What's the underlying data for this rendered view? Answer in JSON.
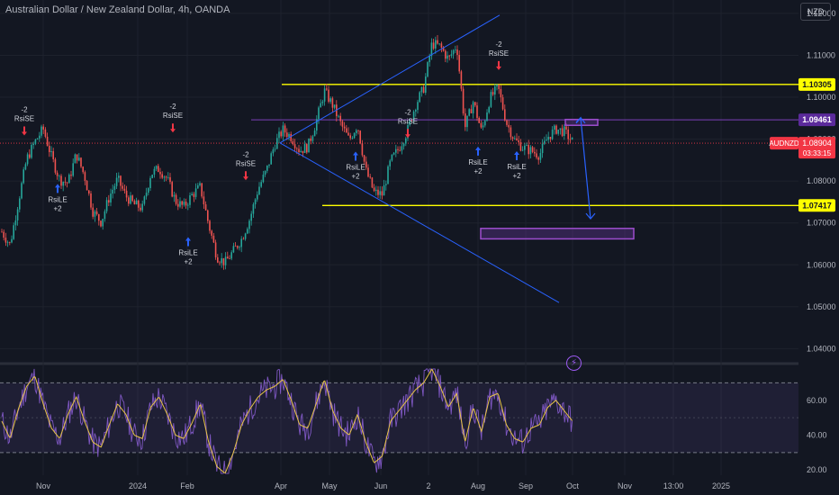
{
  "title": "Australian Dollar / New Zealand Dollar, 4h, OANDA",
  "currency_button": "NZD",
  "bolt_icon": "lightning-icon",
  "chart_data": [
    {
      "type": "line",
      "name": "price",
      "y_ticks": [
        "1.12000",
        "1.11000",
        "1.10000",
        "1.09000",
        "1.08000",
        "1.07000",
        "1.06000",
        "1.05000",
        "1.04000"
      ],
      "ylim": [
        1.0373,
        1.1232
      ],
      "x_ticks": [
        "Nov",
        "2024",
        "Feb",
        "Apr",
        "May",
        "Jun",
        "2",
        "Aug",
        "Sep",
        "Oct",
        "Nov",
        "13:00",
        "2025"
      ],
      "x_tick_index": [
        48,
        153,
        208,
        312,
        366,
        423,
        476,
        531,
        584,
        636,
        694,
        748,
        801
      ],
      "close_series": [
        1.0679,
        1.0648,
        1.0751,
        1.0852,
        1.0893,
        1.0925,
        1.0858,
        1.0803,
        1.0795,
        1.0865,
        1.0812,
        1.0728,
        1.0702,
        1.0763,
        1.0805,
        1.0764,
        1.0744,
        1.0735,
        1.0817,
        1.083,
        1.0805,
        1.0752,
        1.0738,
        1.0767,
        1.0786,
        1.0697,
        1.062,
        1.0605,
        1.0633,
        1.0662,
        1.0711,
        1.0782,
        1.0825,
        1.0888,
        1.0922,
        1.0905,
        1.0873,
        1.0882,
        1.0941,
        1.1015,
        1.0981,
        1.0935,
        1.0898,
        1.0935,
        1.0826,
        1.0773,
        1.0768,
        1.0847,
        1.0878,
        1.0918,
        1.0981,
        1.1022,
        1.1128,
        1.1121,
        1.109,
        1.1125,
        1.0928,
        1.099,
        1.0917,
        1.0997,
        1.1023,
        1.094,
        1.0898,
        1.088,
        1.0872,
        1.0862,
        1.0905,
        1.0924,
        1.0918,
        1.0894
      ],
      "series_x_start": 2,
      "series_x_end": 636,
      "levels": [
        {
          "value": 1.10305,
          "label": "1.10305",
          "color": "#ffff00"
        },
        {
          "value": 1.09461,
          "label": "1.09461",
          "color": "#7b3fb8"
        },
        {
          "value": 1.07417,
          "label": "1.07417",
          "color": "#ffff00"
        }
      ],
      "last_price": {
        "symbol": "AUDNZD",
        "value": "1.08904",
        "countdown": "03:33:15",
        "price": 1.08904,
        "color": "#f23645"
      },
      "signals": [
        {
          "kind": "short",
          "labels": [
            "-2",
            "RsiSE"
          ],
          "i": 27,
          "price": 1.0896
        },
        {
          "kind": "long",
          "labels": [
            "RsiLE",
            "+2"
          ],
          "i": 64,
          "price": 1.0806
        },
        {
          "kind": "short",
          "labels": [
            "-2",
            "RsiSE"
          ],
          "i": 192,
          "price": 1.0903
        },
        {
          "kind": "long",
          "labels": [
            "RsiLE",
            "+2"
          ],
          "i": 209,
          "price": 1.0679
        },
        {
          "kind": "short",
          "labels": [
            "-2",
            "RsiSE"
          ],
          "i": 273,
          "price": 1.0789
        },
        {
          "kind": "long",
          "labels": [
            "RsiLE",
            "+2"
          ],
          "i": 395,
          "price": 1.0883
        },
        {
          "kind": "short",
          "labels": [
            "-2",
            "RsiSE"
          ],
          "i": 453,
          "price": 1.089
        },
        {
          "kind": "long",
          "labels": [
            "RsiLE",
            "+2"
          ],
          "i": 531,
          "price": 1.0895
        },
        {
          "kind": "short",
          "labels": [
            "-2",
            "RsiSE"
          ],
          "i": 554,
          "price": 1.1052
        },
        {
          "kind": "long",
          "labels": [
            "RsiLE",
            "+2"
          ],
          "i": 574,
          "price": 1.0884
        }
      ],
      "trend_lines": [
        {
          "from": [
            311,
            1.0891
          ],
          "to": [
            555,
            1.1196
          ]
        },
        {
          "from": [
            311,
            1.0891
          ],
          "to": [
            621,
            1.051
          ]
        }
      ],
      "zones": [
        {
          "from": [
            628,
            1.0947
          ],
          "to": [
            664,
            1.0933
          ]
        },
        {
          "from": [
            534,
            1.0687
          ],
          "to": [
            704,
            1.0662
          ]
        }
      ],
      "projection": {
        "points": [
          [
            640,
            1.094
          ],
          [
            645,
            1.0951
          ],
          [
            656,
            1.071
          ]
        ]
      }
    },
    {
      "type": "line",
      "name": "rsi",
      "y_ticks": [
        "60.00",
        "40.00",
        "20.00"
      ],
      "ylim": [
        17,
        79
      ],
      "bands": [
        70,
        30
      ],
      "midline": 50,
      "rsi_series": [
        48,
        38,
        55,
        68,
        74,
        58,
        44,
        38,
        52,
        62,
        48,
        36,
        33,
        46,
        58,
        52,
        40,
        38,
        56,
        62,
        52,
        40,
        38,
        47,
        58,
        36,
        22,
        18,
        30,
        46,
        55,
        62,
        66,
        68,
        72,
        60,
        46,
        44,
        58,
        72,
        54,
        44,
        40,
        52,
        36,
        24,
        28,
        48,
        54,
        60,
        66,
        70,
        78,
        68,
        56,
        64,
        36,
        56,
        42,
        62,
        64,
        46,
        38,
        36,
        44,
        46,
        56,
        60,
        54,
        48
      ],
      "rsi_x_start": 2,
      "rsi_x_end": 636
    }
  ]
}
